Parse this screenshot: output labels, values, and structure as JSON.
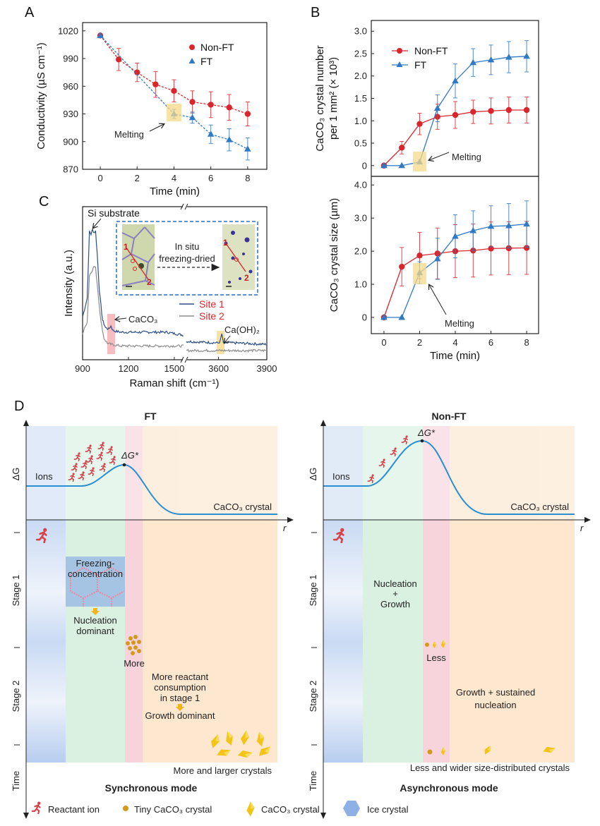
{
  "panel_labels": {
    "a": "A",
    "b": "B",
    "c": "C",
    "d": "D"
  },
  "chart_data": [
    {
      "panel": "A",
      "type": "line",
      "title": "",
      "xlabel": "Time (min)",
      "ylabel": "Conductivity (µS cm⁻¹)",
      "xlim": [
        -0.96,
        9.04
      ],
      "ylim": [
        870,
        1029
      ],
      "xticks": [
        0,
        2,
        4,
        6,
        8
      ],
      "yticks": [
        870,
        900,
        930,
        960,
        990,
        1020
      ],
      "line_style": "dashed",
      "legend": "top-right",
      "series": [
        {
          "name": "Non-FT",
          "marker": "circle",
          "color": "#d9252b",
          "x": [
            0,
            1,
            2,
            3,
            4,
            5,
            6,
            7,
            8
          ],
          "y": [
            1015,
            989,
            975,
            962,
            955,
            943,
            940,
            937,
            930
          ],
          "err": [
            0,
            12,
            10,
            14,
            12,
            12,
            14,
            14,
            13
          ]
        },
        {
          "name": "FT",
          "marker": "triangle",
          "color": "#2f79c6",
          "x": [
            0,
            4,
            5,
            6,
            7,
            8
          ],
          "y": [
            1015,
            930,
            926,
            908,
            902,
            892
          ],
          "err": [
            0,
            5,
            6,
            10,
            12,
            12
          ]
        }
      ],
      "annotation": {
        "text": "Melting",
        "x": 4
      }
    },
    {
      "panel": "B-top",
      "type": "line",
      "xlabel": "",
      "ylabel_lines": [
        "CaCO₃ crystal number",
        "per 1 mm² (× 10³)"
      ],
      "xlim": [
        -0.71,
        8.67
      ],
      "ylim": [
        -0.24,
        3.24
      ],
      "xticks": [],
      "yticks": [
        0,
        0.5,
        1.0,
        1.5,
        2.0,
        2.5,
        3.0
      ],
      "ytick_labels": [
        "0",
        "0.5",
        "1.0",
        "1.5",
        "2.0",
        "2.5",
        "3.0"
      ],
      "line_style": "solid",
      "legend": "top-left",
      "series": [
        {
          "name": "Non-FT",
          "marker": "circle",
          "color": "#d9252b",
          "x": [
            0,
            1,
            2,
            3,
            4,
            5,
            6,
            7,
            8
          ],
          "y": [
            0,
            0.4,
            0.93,
            1.09,
            1.13,
            1.2,
            1.22,
            1.24,
            1.24
          ],
          "err": [
            0,
            0.14,
            0.24,
            0.28,
            0.3,
            0.26,
            0.29,
            0.29,
            0.29
          ]
        },
        {
          "name": "FT",
          "marker": "triangle",
          "color": "#2f79c6",
          "x": [
            0,
            1,
            2,
            3,
            4,
            5,
            6,
            7,
            8
          ],
          "y": [
            0,
            0,
            0.08,
            1.28,
            1.89,
            2.3,
            2.36,
            2.42,
            2.44
          ],
          "err": [
            0,
            0,
            0,
            0.3,
            0.38,
            0.31,
            0.33,
            0.35,
            0.35
          ]
        }
      ],
      "annotation": {
        "text": "Melting",
        "x": 2
      }
    },
    {
      "panel": "B-bottom",
      "type": "line",
      "xlabel": "Time (min)",
      "ylabel": "CaCO₃ crystal size (µm)",
      "xlim": [
        -0.71,
        8.67
      ],
      "ylim": [
        -0.49,
        4.26
      ],
      "xticks": [
        0,
        2,
        4,
        6,
        8
      ],
      "yticks": [
        0,
        1.0,
        2.0,
        3.0,
        4.0
      ],
      "ytick_labels": [
        "0",
        "1.0",
        "2.0",
        "3.0",
        "4.0"
      ],
      "line_style": "solid",
      "series": [
        {
          "name": "Non-FT",
          "marker": "circle",
          "color": "#d9252b",
          "x": [
            0,
            1,
            2,
            3,
            4,
            5,
            6,
            7,
            8
          ],
          "y": [
            0,
            1.53,
            1.87,
            1.93,
            2.0,
            2.02,
            2.08,
            2.09,
            2.1
          ],
          "err": [
            0,
            0.58,
            0.7,
            0.77,
            0.8,
            0.8,
            0.8,
            0.8,
            0.8
          ]
        },
        {
          "name": "FT",
          "marker": "triangle",
          "color": "#2f79c6",
          "x": [
            0,
            1,
            2,
            3,
            4,
            5,
            6,
            7,
            8
          ],
          "y": [
            0,
            0,
            1.35,
            1.77,
            2.45,
            2.62,
            2.75,
            2.77,
            2.82
          ],
          "err": [
            0,
            0,
            0.33,
            0.62,
            0.65,
            0.6,
            0.62,
            0.67,
            0.7
          ]
        }
      ],
      "annotation": {
        "text": "Melting",
        "x": 2
      }
    },
    {
      "panel": "C",
      "type": "line",
      "xlabel": "Raman shift (cm⁻¹)",
      "ylabel": "Intensity (a.u.)",
      "x_segments": [
        [
          900,
          1565
        ],
        [
          3400,
          3900
        ]
      ],
      "ylim": [
        0,
        100
      ],
      "xticks": [
        900,
        1200,
        1500,
        3600,
        3900
      ],
      "legend": "center-right",
      "series": [
        {
          "name": "Site 1",
          "color": "#2b4f86",
          "label_color": "#d9252b",
          "points": [
            [
              900,
              28
            ],
            [
              930,
              40
            ],
            [
              945,
              84
            ],
            [
              955,
              82
            ],
            [
              965,
              85
            ],
            [
              975,
              83
            ],
            [
              985,
              84
            ],
            [
              995,
              70
            ],
            [
              1010,
              45
            ],
            [
              1030,
              26
            ],
            [
              1050,
              21
            ],
            [
              1070,
              20
            ],
            [
              1085,
              22
            ],
            [
              1100,
              19
            ],
            [
              1150,
              18
            ],
            [
              1300,
              18
            ],
            [
              1450,
              18
            ],
            [
              1565,
              16
            ],
            [
              3400,
              12
            ],
            [
              3600,
              11
            ],
            [
              3610,
              12
            ],
            [
              3620,
              17
            ],
            [
              3630,
              11
            ],
            [
              3700,
              11
            ],
            [
              3900,
              10
            ]
          ]
        },
        {
          "name": "Site 2",
          "color": "#8c8c8c",
          "label_color": "#d9252b",
          "points": [
            [
              900,
              17
            ],
            [
              930,
              25
            ],
            [
              945,
              55
            ],
            [
              960,
              58
            ],
            [
              975,
              61
            ],
            [
              985,
              60
            ],
            [
              1000,
              45
            ],
            [
              1020,
              25
            ],
            [
              1040,
              14
            ],
            [
              1060,
              11
            ],
            [
              1085,
              10
            ],
            [
              1150,
              9
            ],
            [
              1300,
              9
            ],
            [
              1565,
              9
            ],
            [
              3400,
              6
            ],
            [
              3900,
              6
            ]
          ]
        }
      ],
      "annotations": {
        "si": "Si substrate",
        "caco3": "CaCO₃",
        "caoh2": "Ca(OH)₂"
      },
      "inset": {
        "line1": "In situ",
        "line2": "freezing-dried",
        "site_a": "1",
        "site_b": "2"
      }
    }
  ],
  "panel_d": {
    "ft": {
      "title": "FT",
      "dg_axis": "ΔG",
      "ions": "Ions",
      "barrier": "ΔG*",
      "product": "CaCO₃ crystal",
      "r_axis": "r",
      "freeze1": "Freezing-",
      "freeze2": "concentration",
      "nuc1": "Nucleation",
      "nuc2": "dominant",
      "more": "More",
      "cons1": "More reactant",
      "cons2": "consumption",
      "cons3": "in stage 1",
      "growth": "Growth dominant",
      "result": "More and larger crystals",
      "mode": "Synchronous mode"
    },
    "nonft": {
      "title": "Non-FT",
      "dg_axis": "ΔG",
      "ions": "Ions",
      "barrier": "ΔG*",
      "product": "CaCO₃ crystal",
      "r_axis": "r",
      "ng1": "Nucleation",
      "ng2": "+",
      "ng3": "Growth",
      "less": "Less",
      "gs1": "Growth + sustained",
      "gs2": "nucleation",
      "result": "Less and wider size-distributed crystals",
      "mode": "Asynchronous mode"
    },
    "stages": {
      "s1": "Stage 1",
      "s2": "Stage 2",
      "time": "Time"
    },
    "legend": {
      "reactant": "Reactant ion",
      "tiny": "Tiny CaCO₃ crystal",
      "crystal": "CaCO₃ crystal",
      "ice": "Ice crystal"
    },
    "colors": {
      "ice": "#c9daf3",
      "nucleation": "#d3efdd",
      "barrier": "#f6cdd6",
      "growth": "#fde3c6",
      "curve": "#2a8fd0",
      "runner": "#d8424a",
      "crystal": "#f3c316"
    }
  }
}
